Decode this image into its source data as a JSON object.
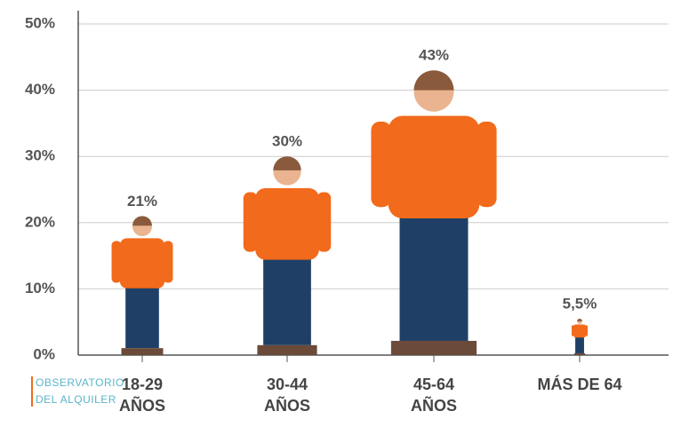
{
  "chart_data": {
    "type": "pictogram",
    "categories": [
      [
        "18-29",
        "AÑOS"
      ],
      [
        "30-44",
        "AÑOS"
      ],
      [
        "45-64",
        "AÑOS"
      ],
      [
        "MÁS DE 64"
      ]
    ],
    "values": [
      21,
      30,
      43,
      5.5
    ],
    "value_labels": [
      "21%",
      "30%",
      "43%",
      "5,5%"
    ],
    "color": "#f26a1b",
    "ylim": [
      0,
      50
    ],
    "yticks": [
      {
        "value": 0,
        "label": "0%"
      },
      {
        "value": 10,
        "label": "10%"
      },
      {
        "value": 20,
        "label": "20%"
      },
      {
        "value": 30,
        "label": "30%"
      },
      {
        "value": 40,
        "label": "40%"
      },
      {
        "value": 50,
        "label": "50%"
      }
    ],
    "grid": true
  },
  "logo": [
    "OBSERVATORIO",
    "DEL ALQUILER"
  ]
}
